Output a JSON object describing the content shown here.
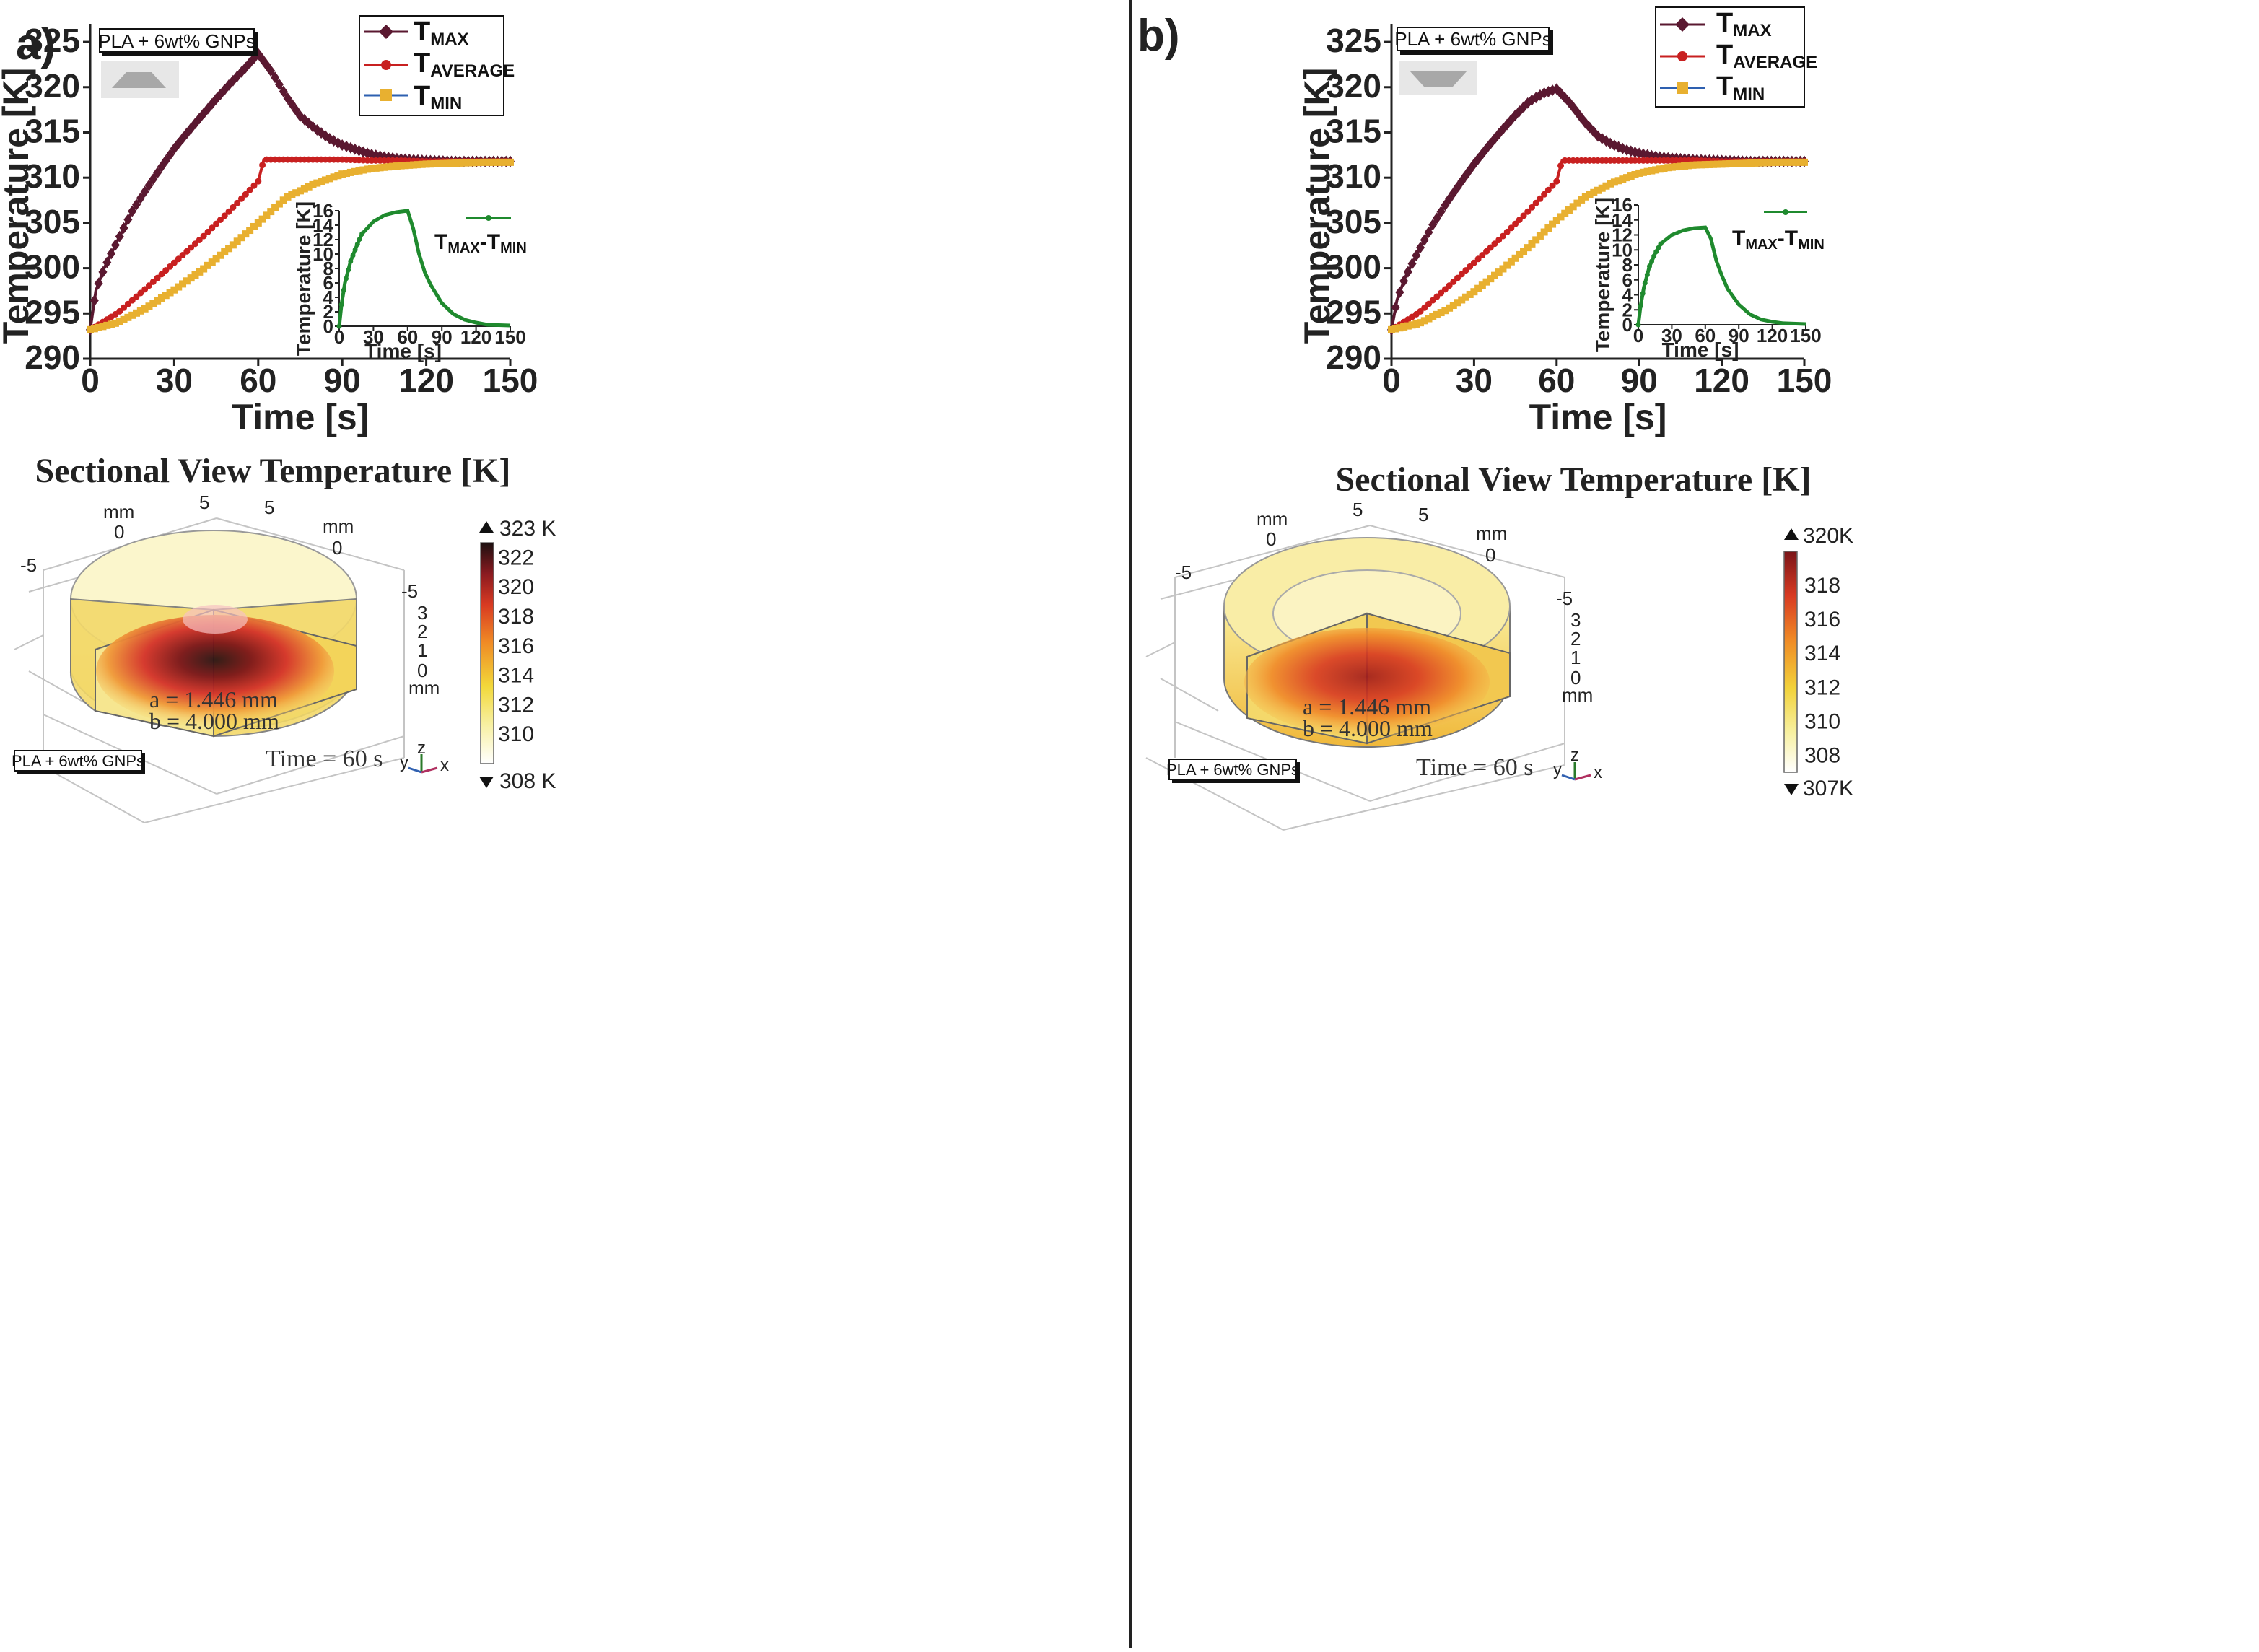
{
  "colors": {
    "tmax": "#5a1830",
    "taverage": "#c82020",
    "tmin": "#e8b030",
    "diff": "#1f8a2e",
    "axis": "#222222"
  },
  "icon_names": [
    "trapezoid-upright-icon",
    "trapezoid-inverted-icon",
    "axis-triad-icon",
    "arrow-up-icon",
    "arrow-down-icon"
  ],
  "panels": [
    {
      "id": "a",
      "label": "a)",
      "material_label": "PLA + 6wt% GNPs",
      "shape_icon": "trapezoid-upright-icon",
      "legend": [
        {
          "base": "T",
          "sub": "MAX"
        },
        {
          "base": "T",
          "sub": "AVERAGE"
        },
        {
          "base": "T",
          "sub": "MIN"
        }
      ],
      "inset_legend": {
        "base1": "T",
        "sub1": "MAX",
        "sep": "-",
        "base2": "T",
        "sub2": "MIN"
      },
      "section_title": "Sectional View Temperature [K]",
      "dims": {
        "a": "a = 1.446 mm",
        "b": "b = 4.000 mm"
      },
      "time_label": "Time = 60 s",
      "bottom_material_label": "PLA + 6wt% GNPs",
      "colorbar": {
        "max_label": "323 K",
        "min_label": "308 K",
        "ticks": [
          "322",
          "320",
          "318",
          "316",
          "314",
          "312",
          "310"
        ],
        "min": 308,
        "max": 323
      },
      "axis3d": {
        "mm_left": "mm",
        "mm_right": "mm",
        "mm_z": "mm",
        "top_vals": [
          "5",
          "5",
          "0",
          "0",
          "-5",
          "-5"
        ],
        "z_vals": [
          "3",
          "2",
          "1",
          "0"
        ],
        "triad": {
          "x": "x",
          "y": "y",
          "z": "z"
        }
      }
    },
    {
      "id": "b",
      "label": "b)",
      "material_label": "PLA + 6wt% GNPs",
      "shape_icon": "trapezoid-inverted-icon",
      "legend": [
        {
          "base": "T",
          "sub": "MAX"
        },
        {
          "base": "T",
          "sub": "AVERAGE"
        },
        {
          "base": "T",
          "sub": "MIN"
        }
      ],
      "inset_legend": {
        "base1": "T",
        "sub1": "MAX",
        "sep": "-",
        "base2": "T",
        "sub2": "MIN"
      },
      "section_title": "Sectional View Temperature [K]",
      "dims": {
        "a": "a = 1.446 mm",
        "b": "b = 4.000 mm"
      },
      "time_label": "Time = 60 s",
      "bottom_material_label": "PLA + 6wt% GNPs",
      "colorbar": {
        "max_label": "320K",
        "min_label": "307K",
        "ticks": [
          "318",
          "316",
          "314",
          "312",
          "310",
          "308"
        ],
        "min": 307,
        "max": 320
      },
      "axis3d": {
        "mm_left": "mm",
        "mm_right": "mm",
        "mm_z": "mm",
        "top_vals": [
          "5",
          "5",
          "0",
          "0",
          "-5",
          "-5"
        ],
        "z_vals": [
          "3",
          "2",
          "1",
          "0"
        ],
        "triad": {
          "x": "x",
          "y": "y",
          "z": "z"
        }
      }
    }
  ],
  "chart_data": [
    {
      "panel": "a",
      "type": "line",
      "title": "",
      "xlabel": "Time [s]",
      "ylabel": "Temperature [K]",
      "xlim": [
        0,
        150
      ],
      "ylim": [
        290,
        327
      ],
      "xticks": [
        0,
        30,
        60,
        90,
        120,
        150
      ],
      "yticks": [
        290,
        295,
        300,
        305,
        310,
        315,
        320,
        325
      ],
      "legend_position": "top-right",
      "series": [
        {
          "name": "TMAX",
          "x": [
            0,
            2,
            5,
            10,
            15,
            20,
            25,
            30,
            35,
            40,
            45,
            50,
            55,
            60,
            65,
            70,
            75,
            80,
            85,
            90,
            95,
            100,
            105,
            110,
            115,
            120,
            130,
            140,
            150
          ],
          "y": [
            293.2,
            297.5,
            300,
            303.2,
            306.3,
            308.7,
            311,
            313.2,
            315.1,
            316.9,
            318.7,
            320.4,
            322,
            323.7,
            321.6,
            319,
            316.8,
            315.5,
            314.4,
            313.6,
            313.1,
            312.6,
            312.3,
            312.1,
            312,
            311.9,
            311.8,
            311.8,
            311.8
          ]
        },
        {
          "name": "TAVERAGE",
          "x": [
            0,
            10,
            20,
            30,
            40,
            50,
            60,
            62,
            70,
            80,
            90,
            100,
            110,
            120,
            130,
            140,
            150
          ],
          "y": [
            293.2,
            295.1,
            297.8,
            300.6,
            303.4,
            306.4,
            309.6,
            312,
            312,
            312,
            312,
            311.9,
            311.9,
            311.8,
            311.8,
            311.8,
            311.8
          ]
        },
        {
          "name": "TMIN",
          "x": [
            0,
            10,
            20,
            30,
            40,
            50,
            60,
            70,
            80,
            90,
            100,
            110,
            120,
            130,
            140,
            150
          ],
          "y": [
            293.2,
            294,
            295.6,
            297.6,
            299.8,
            302.3,
            305,
            307.8,
            309.3,
            310.4,
            311,
            311.3,
            311.5,
            311.6,
            311.7,
            311.7
          ]
        }
      ],
      "inset": {
        "type": "line",
        "xlabel": "Time [s]",
        "ylabel": "Temperature [K]",
        "xlim": [
          0,
          150
        ],
        "ylim": [
          0,
          16
        ],
        "xticks": [
          0,
          30,
          60,
          90,
          120,
          150
        ],
        "yticks": [
          0,
          2,
          4,
          6,
          8,
          10,
          12,
          14,
          16
        ],
        "series": [
          {
            "name": "TMAX-TMIN",
            "x": [
              0,
              2,
              5,
              10,
              15,
              20,
              30,
              40,
              50,
              60,
              65,
              70,
              75,
              80,
              90,
              100,
              110,
              120,
              130,
              150
            ],
            "y": [
              0,
              3,
              6,
              9,
              11,
              12.8,
              14.5,
              15.4,
              15.8,
              16,
              13.5,
              10,
              7.5,
              5.8,
              3.2,
              1.7,
              0.9,
              0.5,
              0.2,
              0.1
            ]
          }
        ]
      }
    },
    {
      "panel": "b",
      "type": "line",
      "title": "",
      "xlabel": "Time [s]",
      "ylabel": "Temperature [K]",
      "xlim": [
        0,
        150
      ],
      "ylim": [
        290,
        327
      ],
      "xticks": [
        0,
        30,
        60,
        90,
        120,
        150
      ],
      "yticks": [
        290,
        295,
        300,
        305,
        310,
        315,
        320,
        325
      ],
      "legend_position": "top-right",
      "series": [
        {
          "name": "TMAX",
          "x": [
            0,
            2,
            5,
            10,
            15,
            20,
            25,
            30,
            35,
            40,
            45,
            50,
            55,
            60,
            65,
            70,
            75,
            80,
            85,
            90,
            95,
            100,
            110,
            120,
            130,
            140,
            150
          ],
          "y": [
            293.2,
            296.5,
            299,
            302,
            304.8,
            307.2,
            309.4,
            311.5,
            313.4,
            315.2,
            316.9,
            318.4,
            319.3,
            319.8,
            318.2,
            316.2,
            314.6,
            313.7,
            313.1,
            312.7,
            312.4,
            312.2,
            312,
            311.9,
            311.8,
            311.8,
            311.8
          ]
        },
        {
          "name": "TAVERAGE",
          "x": [
            0,
            10,
            20,
            30,
            40,
            50,
            60,
            62,
            70,
            80,
            90,
            100,
            110,
            120,
            130,
            140,
            150
          ],
          "y": [
            293.2,
            295.1,
            297.8,
            300.6,
            303.4,
            306.4,
            309.6,
            311.9,
            311.9,
            311.9,
            311.9,
            311.9,
            311.9,
            311.8,
            311.8,
            311.8,
            311.8
          ]
        },
        {
          "name": "TMIN",
          "x": [
            0,
            10,
            20,
            30,
            40,
            50,
            60,
            70,
            80,
            90,
            100,
            110,
            120,
            130,
            140,
            150
          ],
          "y": [
            293.2,
            293.9,
            295.4,
            297.4,
            299.8,
            302.4,
            305.3,
            307.8,
            309.4,
            310.5,
            311.1,
            311.4,
            311.5,
            311.6,
            311.7,
            311.7
          ]
        }
      ],
      "inset": {
        "type": "line",
        "xlabel": "Time [s]",
        "ylabel": "Temperature [K]",
        "xlim": [
          0,
          150
        ],
        "ylim": [
          0,
          16
        ],
        "xticks": [
          0,
          30,
          60,
          90,
          120,
          150
        ],
        "yticks": [
          0,
          2,
          4,
          6,
          8,
          10,
          12,
          14,
          16
        ],
        "series": [
          {
            "name": "TMAX-TMIN",
            "x": [
              0,
              2,
              5,
              10,
              15,
              20,
              30,
              40,
              50,
              60,
              65,
              70,
              75,
              80,
              90,
              100,
              110,
              120,
              130,
              150
            ],
            "y": [
              0,
              2.5,
              5,
              7.8,
              9.5,
              10.8,
              12,
              12.6,
              12.9,
              13,
              11.5,
              8.5,
              6.5,
              4.8,
              2.7,
              1.4,
              0.7,
              0.4,
              0.2,
              0.1
            ]
          }
        ]
      }
    }
  ]
}
